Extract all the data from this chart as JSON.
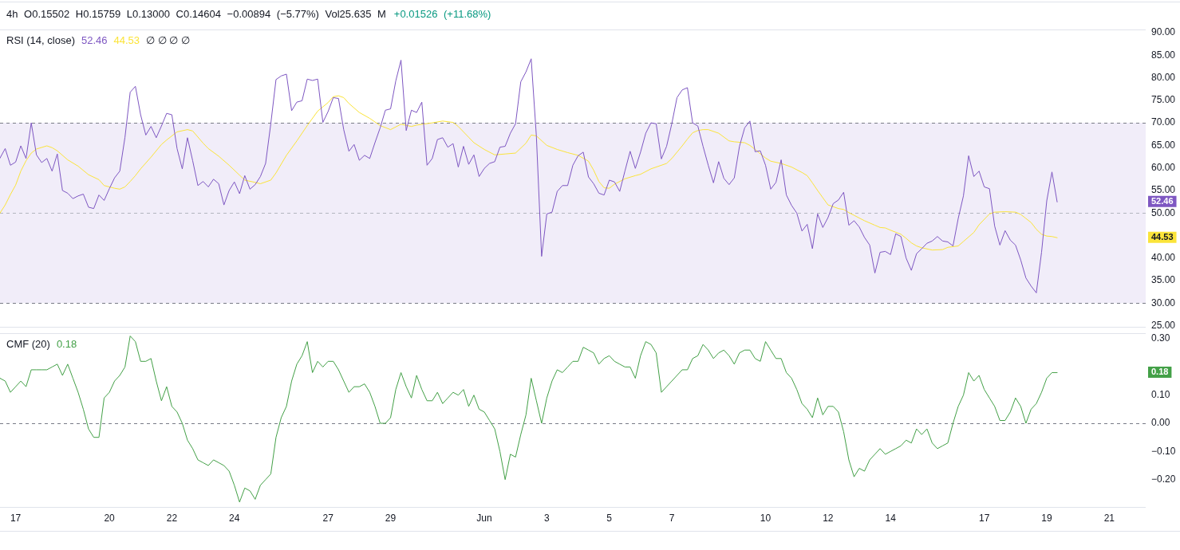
{
  "chart_data": [
    {
      "type": "line",
      "title": "4h O0.15502 H0.15759 L0.13000 C0.14604 −0.00894 (−5.77%) Vol25.635 M",
      "subtitle": "+0.01526 (+11.68%)",
      "legend_title": "RSI (14, close)",
      "annotations": [
        "∅ ∅ ∅ ∅"
      ],
      "x": [
        "--05-16T12:00",
        "--05-16T16:00",
        "--05-16T20:00",
        "--05-17T00:00",
        "--05-17T04:00",
        "--05-17T08:00",
        "--05-17T12:00",
        "--05-17T16:00",
        "--05-17T20:00",
        "--05-18T00:00",
        "--05-18T04:00",
        "--05-18T08:00",
        "--05-18T12:00",
        "--05-18T16:00",
        "--05-18T20:00",
        "--05-19T00:00",
        "--05-19T04:00",
        "--05-19T08:00",
        "--05-19T12:00",
        "--05-19T16:00",
        "--05-19T20:00",
        "--05-20T00:00",
        "--05-20T04:00",
        "--05-20T08:00",
        "--05-20T12:00",
        "--05-20T16:00",
        "--05-20T20:00",
        "--05-21T00:00",
        "--05-21T04:00",
        "--05-21T08:00",
        "--05-21T12:00",
        "--05-21T16:00",
        "--05-21T20:00",
        "--05-22T00:00",
        "--05-22T04:00",
        "--05-22T08:00",
        "--05-22T12:00",
        "--05-22T16:00",
        "--05-22T20:00",
        "--05-23T00:00",
        "--05-23T04:00",
        "--05-23T08:00",
        "--05-23T12:00",
        "--05-23T16:00",
        "--05-23T20:00",
        "--05-24T00:00",
        "--05-24T04:00",
        "--05-24T08:00",
        "--05-24T12:00",
        "--05-24T16:00",
        "--05-24T20:00",
        "--05-25T00:00",
        "--05-25T04:00",
        "--05-25T08:00",
        "--05-25T12:00",
        "--05-25T16:00",
        "--05-25T20:00",
        "--05-26T00:00",
        "--05-26T04:00",
        "--05-26T08:00",
        "--05-26T12:00",
        "--05-26T16:00",
        "--05-26T20:00",
        "--05-27T00:00",
        "--05-27T04:00",
        "--05-27T08:00",
        "--05-27T12:00",
        "--05-27T16:00",
        "--05-27T20:00",
        "--05-28T00:00",
        "--05-28T04:00",
        "--05-28T08:00",
        "--05-28T12:00",
        "--05-28T16:00",
        "--05-28T20:00",
        "--05-29T00:00",
        "--05-29T04:00",
        "--05-29T08:00",
        "--05-29T12:00",
        "--05-29T16:00",
        "--05-29T20:00",
        "--05-30T00:00",
        "--05-30T04:00",
        "--05-30T08:00",
        "--05-30T12:00",
        "--05-30T16:00",
        "--05-30T20:00",
        "--05-31T00:00",
        "--05-31T04:00",
        "--05-31T08:00",
        "--05-31T12:00",
        "--05-31T16:00",
        "--05-31T20:00",
        "--06-01T00:00",
        "--06-01T04:00",
        "--06-01T08:00",
        "--06-01T12:00",
        "--06-01T16:00",
        "--06-01T20:00",
        "--06-02T00:00",
        "--06-02T04:00",
        "--06-02T08:00",
        "--06-02T12:00",
        "--06-02T16:00",
        "--06-02T20:00",
        "--06-03T00:00",
        "--06-03T04:00",
        "--06-03T08:00",
        "--06-03T12:00",
        "--06-03T16:00",
        "--06-03T20:00",
        "--06-04T00:00",
        "--06-04T04:00",
        "--06-04T08:00",
        "--06-04T12:00",
        "--06-04T16:00",
        "--06-04T20:00",
        "--06-05T00:00",
        "--06-05T04:00",
        "--06-05T08:00",
        "--06-05T12:00",
        "--06-05T16:00",
        "--06-05T20:00",
        "--06-06T00:00",
        "--06-06T04:00",
        "--06-06T08:00",
        "--06-06T12:00",
        "--06-06T16:00",
        "--06-06T20:00",
        "--06-07T00:00",
        "--06-07T04:00",
        "--06-07T08:00",
        "--06-07T12:00",
        "--06-07T16:00",
        "--06-07T20:00",
        "--06-08T00:00",
        "--06-08T04:00",
        "--06-08T08:00",
        "--06-08T12:00",
        "--06-08T16:00",
        "--06-08T20:00",
        "--06-09T00:00",
        "--06-09T04:00",
        "--06-09T08:00",
        "--06-09T12:00",
        "--06-09T16:00",
        "--06-09T20:00",
        "--06-10T00:00",
        "--06-10T04:00",
        "--06-10T08:00",
        "--06-10T12:00",
        "--06-10T16:00",
        "--06-10T20:00",
        "--06-11T00:00",
        "--06-11T04:00",
        "--06-11T08:00",
        "--06-11T12:00",
        "--06-11T16:00",
        "--06-11T20:00",
        "--06-12T00:00",
        "--06-12T04:00",
        "--06-12T08:00",
        "--06-12T12:00",
        "--06-12T16:00",
        "--06-12T20:00",
        "--06-13T00:00",
        "--06-13T04:00",
        "--06-13T08:00",
        "--06-13T12:00",
        "--06-13T16:00",
        "--06-13T20:00",
        "--06-14T00:00",
        "--06-14T04:00",
        "--06-14T08:00",
        "--06-14T12:00",
        "--06-14T16:00",
        "--06-14T20:00",
        "--06-15T00:00",
        "--06-15T04:00",
        "--06-15T08:00",
        "--06-15T12:00",
        "--06-15T16:00",
        "--06-15T20:00",
        "--06-16T00:00",
        "--06-16T04:00",
        "--06-16T08:00",
        "--06-16T12:00",
        "--06-16T16:00",
        "--06-16T20:00",
        "--06-17T00:00",
        "--06-17T04:00",
        "--06-17T08:00",
        "--06-17T12:00",
        "--06-17T16:00",
        "--06-17T20:00",
        "--06-18T00:00",
        "--06-18T04:00",
        "--06-18T08:00",
        "--06-18T12:00",
        "--06-18T16:00",
        "--06-18T20:00",
        "--06-19T00:00",
        "--06-19T04:00",
        "--06-19T08:00"
      ],
      "xlim": [
        "--05-16T12:00",
        "--06-22T04:00"
      ],
      "ylim": [
        24.6,
        90.7
      ],
      "yticks": [
        {
          "value": 25,
          "label": "25.00"
        },
        {
          "value": 30,
          "label": "30.00"
        },
        {
          "value": 35,
          "label": "35.00"
        },
        {
          "value": 40,
          "label": "40.00"
        },
        {
          "value": 44.53,
          "label": "44.53"
        },
        {
          "value": 50,
          "label": "50.00"
        },
        {
          "value": 52.46,
          "label": "52.46"
        },
        {
          "value": 55,
          "label": "55.00"
        },
        {
          "value": 60,
          "label": "60.00"
        },
        {
          "value": 65,
          "label": "65.00"
        },
        {
          "value": 70,
          "label": "70.00"
        },
        {
          "value": 75,
          "label": "75.00"
        },
        {
          "value": 80,
          "label": "80.00"
        },
        {
          "value": 85,
          "label": "85.00"
        },
        {
          "value": 90,
          "label": "90.00"
        }
      ],
      "tick_labels": "y",
      "bands": [
        {
          "axis": "y",
          "from": 30,
          "to": 70,
          "color": "#f1edf9"
        }
      ],
      "ref_lines": [
        {
          "axis": "y",
          "value": 70,
          "color": "#787b86",
          "line_style": "dashed"
        },
        {
          "axis": "y",
          "value": 50,
          "color": "#b2b5be",
          "line_style": "dashed"
        },
        {
          "axis": "y",
          "value": 30,
          "color": "#787b86",
          "line_style": "dashed"
        }
      ],
      "series": [
        {
          "color": "#7e57c2",
          "values": [
            62.2,
            64.3,
            60.6,
            61.3,
            64.9,
            62.1,
            70.0,
            62.9,
            61.2,
            62.1,
            59.3,
            63.1,
            55.0,
            54.4,
            53.2,
            53.8,
            54.2,
            51.3,
            51.0,
            54.0,
            52.8,
            55.4,
            57.8,
            59.3,
            66.8,
            76.8,
            78.1,
            71.8,
            67.3,
            69.2,
            66.7,
            69.3,
            72.1,
            71.8,
            64.3,
            59.8,
            66.7,
            61.6,
            56.1,
            57.0,
            55.8,
            57.5,
            56.5,
            51.8,
            55.0,
            56.9,
            54.3,
            58.3,
            55.3,
            56.3,
            58.1,
            61.0,
            69.8,
            79.6,
            80.4,
            80.8,
            72.7,
            74.6,
            74.9,
            79.7,
            79.4,
            79.7,
            70.1,
            72.5,
            75.6,
            75.4,
            68.5,
            63.7,
            65.2,
            61.7,
            62.8,
            62.1,
            65.6,
            68.9,
            72.8,
            73.1,
            79.3,
            83.9,
            68.3,
            72.8,
            72.3,
            74.6,
            60.6,
            62.1,
            66.3,
            66.7,
            64.6,
            65.4,
            60.2,
            64.8,
            60.8,
            62.9,
            58.1,
            59.9,
            61.0,
            61.4,
            64.6,
            64.8,
            67.7,
            69.8,
            79.1,
            81.3,
            84.2,
            67.0,
            40.4,
            49.8,
            50.2,
            54.8,
            56.1,
            56.1,
            60.6,
            62.7,
            63.5,
            58.0,
            56.5,
            54.4,
            54.0,
            57.3,
            56.9,
            54.8,
            59.3,
            63.7,
            59.9,
            63.5,
            67.7,
            70.0,
            69.8,
            62.0,
            64.8,
            69.8,
            75.6,
            77.3,
            77.8,
            70.0,
            69.3,
            64.8,
            60.6,
            56.7,
            61.4,
            57.7,
            56.3,
            57.8,
            64.8,
            68.9,
            70.4,
            63.6,
            63.8,
            60.6,
            55.3,
            56.8,
            61.8,
            54.0,
            51.7,
            50.0,
            46.0,
            47.5,
            42.1,
            49.8,
            46.8,
            49.0,
            52.1,
            52.9,
            54.6,
            47.3,
            48.3,
            46.9,
            44.6,
            42.9,
            36.7,
            41.3,
            41.5,
            40.8,
            45.4,
            44.8,
            40.0,
            37.3,
            41.0,
            42.1,
            43.3,
            43.8,
            44.8,
            43.8,
            43.6,
            42.7,
            48.8,
            53.8,
            62.7,
            58.1,
            59.3,
            55.8,
            55.4,
            47.1,
            42.9,
            46.1,
            44.0,
            42.9,
            39.6,
            35.6,
            33.8,
            32.3,
            41.3,
            52.7,
            59.1,
            52.46
          ]
        },
        {
          "color": "#fbe43a",
          "x": [
            "--05-16T12:00",
            "--05-16T16:00",
            "--05-16T20:00",
            "--05-17T00:00",
            "--05-17T04:00",
            "--05-17T08:00",
            "--05-17T12:00",
            "--05-17T16:00",
            "--05-18T00:00",
            "--05-18T04:00",
            "--05-18T08:00",
            "--05-18T16:00",
            "--05-19T00:00",
            "--05-19T08:00",
            "--05-19T16:00",
            "--05-19T20:00",
            "--05-20T04:00",
            "--05-20T08:00",
            "--05-20T12:00",
            "--05-20T16:00",
            "--05-20T20:00",
            "--05-21T00:00",
            "--05-21T08:00",
            "--05-21T16:00",
            "--05-21T20:00",
            "--05-22T04:00",
            "--05-22T12:00",
            "--05-22T16:00",
            "--05-23T00:00",
            "--05-23T04:00",
            "--05-23T12:00",
            "--05-23T20:00",
            "--05-24T04:00",
            "--05-24T08:00",
            "--05-24T16:00",
            "--05-24T20:00",
            "--05-25T04:00",
            "--05-25T08:00",
            "--05-25T16:00",
            "--05-26T00:00",
            "--05-26T08:00",
            "--05-26T16:00",
            "--05-27T00:00",
            "--05-27T04:00",
            "--05-27T08:00",
            "--05-27T12:00",
            "--05-27T16:00",
            "--05-28T00:00",
            "--05-28T08:00",
            "--05-28T16:00",
            "--05-29T00:00",
            "--05-29T08:00",
            "--05-29T16:00",
            "--05-29T20:00",
            "--05-30T08:00",
            "--05-30T16:00",
            "--05-31T00:00",
            "--05-31T04:00",
            "--05-31T12:00",
            "--05-31T16:00",
            "--06-01T00:00",
            "--06-01T08:00",
            "--06-01T16:00",
            "--06-02T00:00",
            "--06-02T08:00",
            "--06-02T12:00",
            "--06-02T16:00",
            "--06-03T00:00",
            "--06-03T08:00",
            "--06-03T16:00",
            "--06-04T00:00",
            "--06-04T08:00",
            "--06-04T12:00",
            "--06-04T16:00",
            "--06-04T20:00",
            "--06-05T00:00",
            "--06-05T04:00",
            "--06-05T12:00",
            "--06-05T20:00",
            "--06-06T00:00",
            "--06-06T08:00",
            "--06-06T16:00",
            "--06-06T20:00",
            "--06-07T00:00",
            "--06-07T04:00",
            "--06-07T08:00",
            "--06-07T12:00",
            "--06-07T16:00",
            "--06-07T20:00",
            "--06-08T00:00",
            "--06-08T04:00",
            "--06-08T12:00",
            "--06-08T20:00",
            "--06-09T00:00",
            "--06-09T08:00",
            "--06-09T12:00",
            "--06-09T16:00",
            "--06-10T00:00",
            "--06-10T04:00",
            "--06-10T12:00",
            "--06-10T20:00",
            "--06-11T04:00",
            "--06-11T08:00",
            "--06-11T12:00",
            "--06-11T16:00",
            "--06-11T20:00",
            "--06-12T00:00",
            "--06-12T08:00",
            "--06-12T12:00",
            "--06-12T16:00",
            "--06-12T20:00",
            "--06-13T04:00",
            "--06-13T12:00",
            "--06-13T16:00",
            "--06-13T20:00",
            "--06-14T00:00",
            "--06-14T08:00",
            "--06-14T12:00",
            "--06-14T16:00",
            "--06-14T20:00",
            "--06-15T00:00",
            "--06-15T08:00",
            "--06-15T16:00",
            "--06-15T20:00",
            "--06-16T04:00",
            "--06-16T08:00",
            "--06-16T16:00",
            "--06-16T20:00",
            "--06-17T04:00",
            "--06-17T08:00",
            "--06-17T16:00",
            "--06-18T00:00",
            "--06-18T04:00",
            "--06-18T08:00",
            "--06-18T12:00",
            "--06-18T16:00",
            "--06-18T20:00",
            "--06-19T00:00",
            "--06-19T04:00",
            "--06-19T08:00"
          ],
          "values": [
            50.0,
            51.8,
            54.1,
            56.2,
            59.3,
            61.6,
            63.3,
            64.2,
            64.9,
            64.5,
            63.8,
            61.8,
            60.4,
            58.5,
            57.4,
            56.1,
            55.5,
            55.3,
            55.8,
            57.0,
            58.3,
            59.8,
            62.4,
            65.2,
            66.2,
            68.0,
            68.5,
            68.2,
            65.5,
            64.3,
            62.6,
            60.6,
            58.4,
            57.3,
            56.8,
            56.5,
            57.3,
            58.9,
            62.8,
            66.0,
            69.4,
            72.6,
            74.5,
            75.8,
            76.0,
            75.6,
            74.3,
            72.3,
            71.0,
            69.4,
            68.5,
            69.7,
            69.2,
            69.5,
            70.0,
            70.4,
            70.1,
            69.2,
            66.8,
            65.6,
            64.1,
            62.9,
            63.1,
            63.3,
            65.5,
            67.3,
            67.1,
            65.0,
            64.1,
            63.4,
            62.8,
            61.5,
            59.5,
            57.0,
            55.6,
            55.5,
            56.4,
            57.6,
            58.3,
            58.6,
            59.8,
            60.6,
            61.0,
            62.1,
            63.5,
            64.9,
            66.4,
            67.8,
            68.3,
            68.5,
            68.5,
            67.7,
            66.0,
            65.8,
            65.6,
            65.0,
            64.1,
            62.2,
            61.5,
            61.0,
            60.2,
            59.0,
            58.3,
            56.7,
            55.0,
            53.4,
            51.8,
            51.0,
            50.8,
            50.1,
            49.5,
            48.3,
            47.3,
            46.8,
            46.7,
            46.2,
            45.3,
            44.4,
            43.4,
            42.7,
            42.3,
            41.8,
            41.9,
            42.4,
            42.7,
            43.7,
            45.7,
            47.4,
            49.8,
            50.2,
            50.3,
            50.2,
            49.7,
            48.8,
            47.9,
            46.4,
            45.3,
            44.9,
            44.8,
            44.53
          ]
        }
      ]
    },
    {
      "type": "line",
      "legend_title": "CMF (20)",
      "x": [
        "--05-16T12:00",
        "--05-16T16:00",
        "--05-16T20:00",
        "--05-17T00:00",
        "--05-17T04:00",
        "--05-17T08:00",
        "--05-17T12:00",
        "--05-17T16:00",
        "--05-17T20:00",
        "--05-18T00:00",
        "--05-18T04:00",
        "--05-18T08:00",
        "--05-18T12:00",
        "--05-18T16:00",
        "--05-18T20:00",
        "--05-19T00:00",
        "--05-19T04:00",
        "--05-19T08:00",
        "--05-19T12:00",
        "--05-19T16:00",
        "--05-19T20:00",
        "--05-20T00:00",
        "--05-20T04:00",
        "--05-20T08:00",
        "--05-20T12:00",
        "--05-20T16:00",
        "--05-20T20:00",
        "--05-21T00:00",
        "--05-21T04:00",
        "--05-21T08:00",
        "--05-21T12:00",
        "--05-21T16:00",
        "--05-21T20:00",
        "--05-22T00:00",
        "--05-22T04:00",
        "--05-22T08:00",
        "--05-22T12:00",
        "--05-22T16:00",
        "--05-22T20:00",
        "--05-23T00:00",
        "--05-23T04:00",
        "--05-23T08:00",
        "--05-23T12:00",
        "--05-23T16:00",
        "--05-23T20:00",
        "--05-24T00:00",
        "--05-24T04:00",
        "--05-24T08:00",
        "--05-24T12:00",
        "--05-24T16:00",
        "--05-24T20:00",
        "--05-25T00:00",
        "--05-25T04:00",
        "--05-25T08:00",
        "--05-25T12:00",
        "--05-25T16:00",
        "--05-25T20:00",
        "--05-26T00:00",
        "--05-26T04:00",
        "--05-26T08:00",
        "--05-26T12:00",
        "--05-26T16:00",
        "--05-26T20:00",
        "--05-27T00:00",
        "--05-27T04:00",
        "--05-27T08:00",
        "--05-27T12:00",
        "--05-27T16:00",
        "--05-27T20:00",
        "--05-28T00:00",
        "--05-28T04:00",
        "--05-28T08:00",
        "--05-28T12:00",
        "--05-28T16:00",
        "--05-28T20:00",
        "--05-29T00:00",
        "--05-29T04:00",
        "--05-29T08:00",
        "--05-29T12:00",
        "--05-29T16:00",
        "--05-29T20:00",
        "--05-30T00:00",
        "--05-30T04:00",
        "--05-30T08:00",
        "--05-30T12:00",
        "--05-30T16:00",
        "--05-30T20:00",
        "--05-31T00:00",
        "--05-31T04:00",
        "--05-31T08:00",
        "--05-31T12:00",
        "--05-31T16:00",
        "--05-31T20:00",
        "--06-01T00:00",
        "--06-01T04:00",
        "--06-01T08:00",
        "--06-01T12:00",
        "--06-01T16:00",
        "--06-01T20:00",
        "--06-02T00:00",
        "--06-02T04:00",
        "--06-02T08:00",
        "--06-02T12:00",
        "--06-02T16:00",
        "--06-02T20:00",
        "--06-03T00:00",
        "--06-03T04:00",
        "--06-03T08:00",
        "--06-03T12:00",
        "--06-03T16:00",
        "--06-03T20:00",
        "--06-04T00:00",
        "--06-04T04:00",
        "--06-04T08:00",
        "--06-04T12:00",
        "--06-04T16:00",
        "--06-04T20:00",
        "--06-05T00:00",
        "--06-05T04:00",
        "--06-05T08:00",
        "--06-05T12:00",
        "--06-05T16:00",
        "--06-05T20:00",
        "--06-06T00:00",
        "--06-06T04:00",
        "--06-06T08:00",
        "--06-06T12:00",
        "--06-06T16:00",
        "--06-06T20:00",
        "--06-07T00:00",
        "--06-07T04:00",
        "--06-07T08:00",
        "--06-07T12:00",
        "--06-07T16:00",
        "--06-07T20:00",
        "--06-08T00:00",
        "--06-08T04:00",
        "--06-08T08:00",
        "--06-08T12:00",
        "--06-08T16:00",
        "--06-08T20:00",
        "--06-09T00:00",
        "--06-09T04:00",
        "--06-09T08:00",
        "--06-09T12:00",
        "--06-09T16:00",
        "--06-09T20:00",
        "--06-10T00:00",
        "--06-10T04:00",
        "--06-10T08:00",
        "--06-10T12:00",
        "--06-10T16:00",
        "--06-10T20:00",
        "--06-11T00:00",
        "--06-11T04:00",
        "--06-11T08:00",
        "--06-11T12:00",
        "--06-11T16:00",
        "--06-11T20:00",
        "--06-12T00:00",
        "--06-12T04:00",
        "--06-12T08:00",
        "--06-12T12:00",
        "--06-12T16:00",
        "--06-12T20:00",
        "--06-13T00:00",
        "--06-13T04:00",
        "--06-13T08:00",
        "--06-13T12:00",
        "--06-13T16:00",
        "--06-13T20:00",
        "--06-14T00:00",
        "--06-14T04:00",
        "--06-14T08:00",
        "--06-14T12:00",
        "--06-14T16:00",
        "--06-14T20:00",
        "--06-15T00:00",
        "--06-15T04:00",
        "--06-15T08:00",
        "--06-15T12:00",
        "--06-15T16:00",
        "--06-15T20:00",
        "--06-16T00:00",
        "--06-16T04:00",
        "--06-16T08:00",
        "--06-16T12:00",
        "--06-16T16:00",
        "--06-16T20:00",
        "--06-17T00:00",
        "--06-17T04:00",
        "--06-17T08:00",
        "--06-17T12:00",
        "--06-17T16:00",
        "--06-17T20:00",
        "--06-18T00:00",
        "--06-18T04:00",
        "--06-18T08:00",
        "--06-18T12:00",
        "--06-18T16:00",
        "--06-18T20:00",
        "--06-19T00:00",
        "--06-19T04:00",
        "--06-19T08:00"
      ],
      "xlim": [
        "--05-16T12:00",
        "--06-22T04:00"
      ],
      "xticks": [
        {
          "value": "--05-17",
          "label": "17"
        },
        {
          "value": "--05-20",
          "label": "20"
        },
        {
          "value": "--05-22",
          "label": "22"
        },
        {
          "value": "--05-24",
          "label": "24"
        },
        {
          "value": "--05-27",
          "label": "27"
        },
        {
          "value": "--05-29",
          "label": "29"
        },
        {
          "value": "--06-01",
          "label": "Jun"
        },
        {
          "value": "--06-03",
          "label": "3"
        },
        {
          "value": "--06-05",
          "label": "5"
        },
        {
          "value": "--06-07",
          "label": "7"
        },
        {
          "value": "--06-10",
          "label": "10"
        },
        {
          "value": "--06-12",
          "label": "12"
        },
        {
          "value": "--06-14",
          "label": "14"
        },
        {
          "value": "--06-17",
          "label": "17"
        },
        {
          "value": "--06-19",
          "label": "19"
        },
        {
          "value": "--06-21",
          "label": "21"
        }
      ],
      "ylim": [
        -0.3,
        0.32
      ],
      "yticks": [
        {
          "value": -0.2,
          "label": "−0.20"
        },
        {
          "value": -0.1,
          "label": "−0.10"
        },
        {
          "value": 0,
          "label": "0.00"
        },
        {
          "value": 0.1,
          "label": "0.10"
        },
        {
          "value": 0.18,
          "label": "0.18"
        },
        {
          "value": 0.3,
          "label": "0.30"
        }
      ],
      "ref_lines": [
        {
          "axis": "y",
          "value": 0,
          "color": "#787b86",
          "line_style": "dashed"
        }
      ],
      "series": [
        {
          "color": "#43a047",
          "values": [
            0.16,
            0.15,
            0.11,
            0.13,
            0.15,
            0.13,
            0.19,
            0.19,
            0.19,
            0.19,
            0.2,
            0.21,
            0.17,
            0.21,
            0.16,
            0.11,
            0.05,
            -0.02,
            -0.05,
            -0.05,
            0.09,
            0.11,
            0.15,
            0.17,
            0.2,
            0.31,
            0.29,
            0.22,
            0.22,
            0.23,
            0.15,
            0.08,
            0.13,
            0.06,
            0.04,
            0.0,
            -0.06,
            -0.09,
            -0.13,
            -0.14,
            -0.15,
            -0.13,
            -0.14,
            -0.15,
            -0.17,
            -0.22,
            -0.28,
            -0.23,
            -0.24,
            -0.27,
            -0.22,
            -0.2,
            -0.18,
            -0.05,
            0.02,
            0.06,
            0.15,
            0.21,
            0.24,
            0.29,
            0.18,
            0.22,
            0.2,
            0.22,
            0.22,
            0.19,
            0.15,
            0.11,
            0.13,
            0.13,
            0.14,
            0.11,
            0.06,
            0.0,
            0.0,
            0.02,
            0.12,
            0.18,
            0.13,
            0.09,
            0.17,
            0.12,
            0.08,
            0.08,
            0.11,
            0.07,
            0.09,
            0.11,
            0.1,
            0.12,
            0.06,
            0.1,
            0.05,
            0.04,
            0.01,
            -0.02,
            -0.1,
            -0.2,
            -0.11,
            -0.12,
            -0.04,
            0.03,
            0.16,
            0.08,
            0.0,
            0.09,
            0.15,
            0.19,
            0.18,
            0.2,
            0.22,
            0.22,
            0.27,
            0.26,
            0.25,
            0.21,
            0.23,
            0.24,
            0.22,
            0.21,
            0.2,
            0.2,
            0.16,
            0.24,
            0.29,
            0.28,
            0.25,
            0.11,
            0.13,
            0.15,
            0.17,
            0.19,
            0.19,
            0.23,
            0.24,
            0.28,
            0.26,
            0.23,
            0.25,
            0.26,
            0.24,
            0.21,
            0.25,
            0.26,
            0.26,
            0.23,
            0.22,
            0.29,
            0.26,
            0.23,
            0.23,
            0.18,
            0.16,
            0.12,
            0.07,
            0.05,
            0.02,
            0.09,
            0.03,
            0.06,
            0.06,
            0.04,
            -0.03,
            -0.13,
            -0.19,
            -0.16,
            -0.17,
            -0.13,
            -0.11,
            -0.09,
            -0.11,
            -0.1,
            -0.09,
            -0.08,
            -0.06,
            -0.07,
            -0.02,
            -0.04,
            -0.02,
            -0.07,
            -0.09,
            -0.08,
            -0.07,
            0.0,
            0.06,
            0.1,
            0.18,
            0.15,
            0.17,
            0.12,
            0.09,
            0.06,
            0.01,
            0.01,
            0.04,
            0.09,
            0.06,
            0.0,
            0.05,
            0.07,
            0.11,
            0.16,
            0.18,
            0.18
          ]
        }
      ]
    }
  ]
}
